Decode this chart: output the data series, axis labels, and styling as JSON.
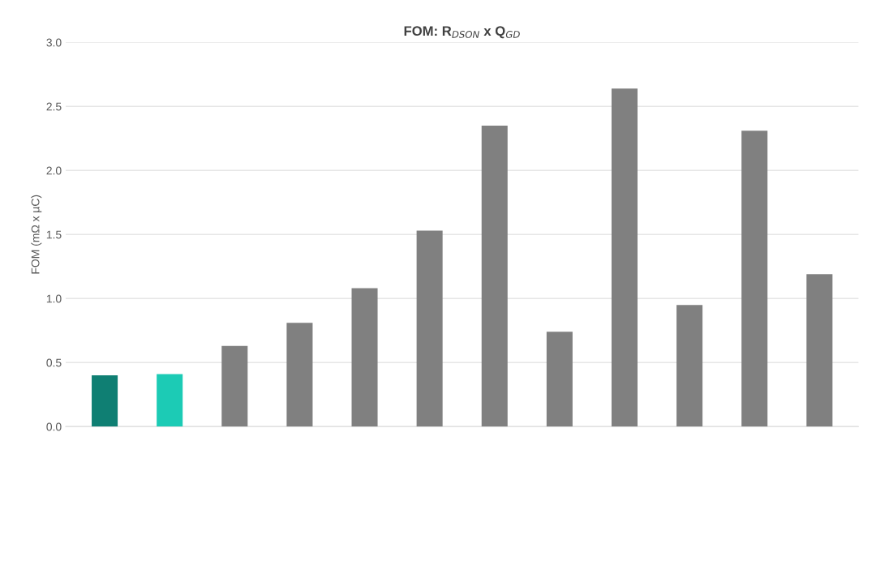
{
  "chart_data": {
    "type": "bar",
    "title": "FOM: R$_{DSON}$ x Q$_{GD}$",
    "ylabel": "FOM (mΩ x µC)",
    "categories": [
      null,
      null,
      null,
      null,
      null,
      null,
      null,
      null,
      null,
      null,
      null,
      null
    ],
    "values": [
      0.4,
      0.41,
      0.63,
      0.81,
      1.08,
      1.53,
      2.35,
      0.74,
      2.64,
      0.95,
      2.31,
      1.19
    ],
    "colors": [
      "#0f7f73",
      "#1ccbb5",
      "#808080",
      "#808080",
      "#808080",
      "#808080",
      "#808080",
      "#808080",
      "#808080",
      "#808080",
      "#808080",
      "#808080"
    ],
    "ylim": [
      0,
      3.0
    ],
    "yticks": [
      {
        "value": 0,
        "label": "0.0"
      },
      0.5,
      {
        "value": 1,
        "label": "1.0"
      },
      1.5,
      {
        "value": 2,
        "label": "2.0"
      },
      2.5,
      {
        "value": 3,
        "label": "3.0"
      }
    ],
    "grid": "y"
  }
}
